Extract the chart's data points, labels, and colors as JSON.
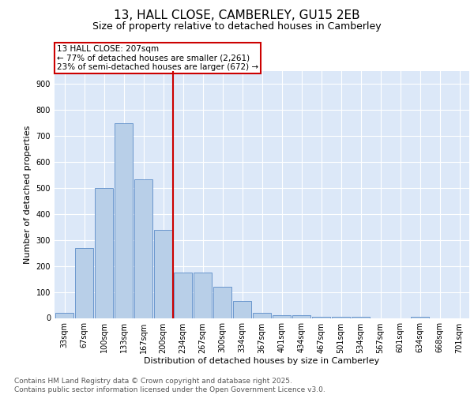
{
  "title_line1": "13, HALL CLOSE, CAMBERLEY, GU15 2EB",
  "title_line2": "Size of property relative to detached houses in Camberley",
  "xlabel": "Distribution of detached houses by size in Camberley",
  "ylabel": "Number of detached properties",
  "bar_labels": [
    "33sqm",
    "67sqm",
    "100sqm",
    "133sqm",
    "167sqm",
    "200sqm",
    "234sqm",
    "267sqm",
    "300sqm",
    "334sqm",
    "367sqm",
    "401sqm",
    "434sqm",
    "467sqm",
    "501sqm",
    "534sqm",
    "567sqm",
    "601sqm",
    "634sqm",
    "668sqm",
    "701sqm"
  ],
  "bar_values": [
    20,
    270,
    500,
    750,
    535,
    340,
    175,
    175,
    120,
    65,
    20,
    12,
    12,
    5,
    5,
    4,
    0,
    0,
    5,
    0,
    0
  ],
  "bar_color": "#b8cfe8",
  "bar_edge_color": "#5b8cc8",
  "background_color": "#dce8f8",
  "grid_color": "#ffffff",
  "vline_x": 5.5,
  "vline_color": "#cc0000",
  "annotation_title": "13 HALL CLOSE: 207sqm",
  "annotation_line1": "← 77% of detached houses are smaller (2,261)",
  "annotation_line2": "23% of semi-detached houses are larger (672) →",
  "annotation_box_color": "#cc0000",
  "ylim": [
    0,
    950
  ],
  "yticks": [
    0,
    100,
    200,
    300,
    400,
    500,
    600,
    700,
    800,
    900
  ],
  "footnote_line1": "Contains HM Land Registry data © Crown copyright and database right 2025.",
  "footnote_line2": "Contains public sector information licensed under the Open Government Licence v3.0.",
  "title_fontsize": 11,
  "subtitle_fontsize": 9,
  "axis_label_fontsize": 8,
  "tick_fontsize": 7,
  "annotation_fontsize": 7.5,
  "footnote_fontsize": 6.5
}
